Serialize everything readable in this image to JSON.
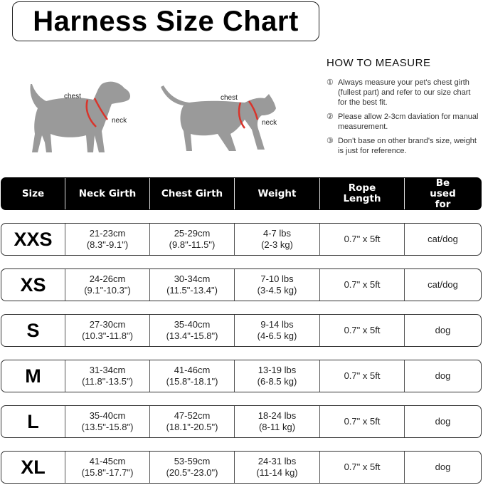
{
  "title": "Harness Size Chart",
  "illustrations": {
    "dog": {
      "chest_label": "chest",
      "neck_label": "neck"
    },
    "cat": {
      "chest_label": "chest",
      "neck_label": "neck"
    },
    "harness_color": "#d9342b",
    "body_color": "#9a9a9a"
  },
  "how_to_measure": {
    "heading": "HOW TO MEASURE",
    "tips": [
      {
        "num": "①",
        "text": "Always measure your pet's chest girth (fullest part) and refer to our size chart for the best fit."
      },
      {
        "num": "②",
        "text": "Please allow 2-3cm daviation for manual measurement."
      },
      {
        "num": "③",
        "text": "Don't base on other brand's size, weight is just for reference."
      }
    ]
  },
  "table": {
    "headers": [
      "Size",
      "Neck Girth",
      "Chest Girth",
      "Weight",
      "Rope Length",
      "Be used for"
    ],
    "rows": [
      {
        "size": "XXS",
        "neck": [
          "21-23cm",
          "(8.3\"-9.1\")"
        ],
        "chest": [
          "25-29cm",
          "(9.8\"-11.5\")"
        ],
        "weight": [
          "4-7 lbs",
          "(2-3 kg)"
        ],
        "rope": "0.7\" x 5ft",
        "use": "cat/dog"
      },
      {
        "size": "XS",
        "neck": [
          "24-26cm",
          "(9.1\"-10.3\")"
        ],
        "chest": [
          "30-34cm",
          "(11.5\"-13.4\")"
        ],
        "weight": [
          "7-10 lbs",
          "(3-4.5 kg)"
        ],
        "rope": "0.7\" x 5ft",
        "use": "cat/dog"
      },
      {
        "size": "S",
        "neck": [
          "27-30cm",
          "(10.3\"-11.8\")"
        ],
        "chest": [
          "35-40cm",
          "(13.4\"-15.8\")"
        ],
        "weight": [
          "9-14 lbs",
          "(4-6.5 kg)"
        ],
        "rope": "0.7\" x 5ft",
        "use": "dog"
      },
      {
        "size": "M",
        "neck": [
          "31-34cm",
          "(11.8\"-13.5\")"
        ],
        "chest": [
          "41-46cm",
          "(15.8\"-18.1\")"
        ],
        "weight": [
          "13-19 lbs",
          "(6-8.5 kg)"
        ],
        "rope": "0.7\" x 5ft",
        "use": "dog"
      },
      {
        "size": "L",
        "neck": [
          "35-40cm",
          "(13.5\"-15.8\")"
        ],
        "chest": [
          "47-52cm",
          "(18.1\"-20.5\")"
        ],
        "weight": [
          "18-24 lbs",
          "(8-11 kg)"
        ],
        "rope": "0.7\" x 5ft",
        "use": "dog"
      },
      {
        "size": "XL",
        "neck": [
          "41-45cm",
          "(15.8\"-17.7\")"
        ],
        "chest": [
          "53-59cm",
          "(20.5\"-23.0\")"
        ],
        "weight": [
          "24-31 lbs",
          "(11-14 kg)"
        ],
        "rope": "0.7\" x 5ft",
        "use": "dog"
      }
    ]
  }
}
